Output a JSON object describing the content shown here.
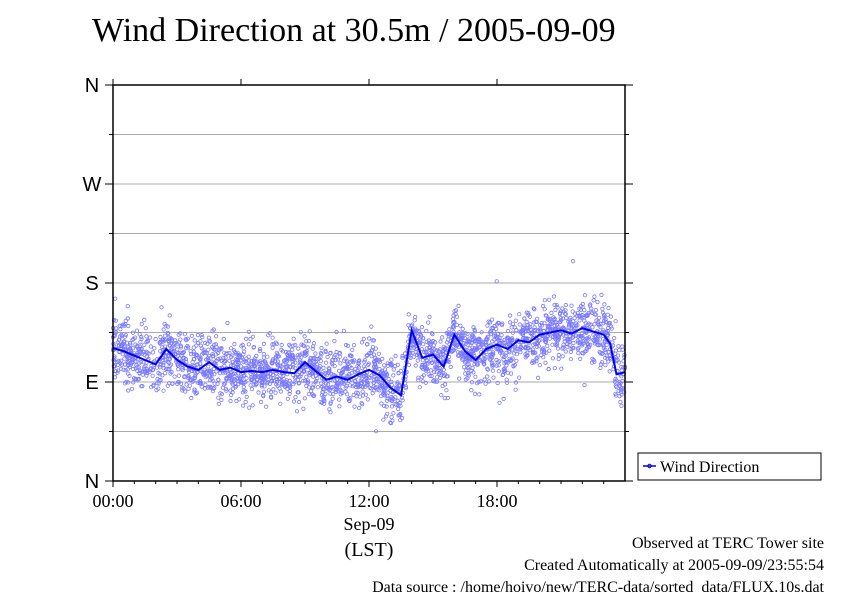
{
  "chart_data": {
    "type": "line",
    "title": "Wind Direction at 30.5m / 2005-09-09",
    "xlabel_date": "Sep-09",
    "xlabel": "(LST)",
    "xlim_hours": [
      0,
      24
    ],
    "ylim_deg": [
      0,
      360
    ],
    "x_ticks": [
      {
        "h": 0,
        "label": "00:00"
      },
      {
        "h": 6,
        "label": "06:00"
      },
      {
        "h": 12,
        "label": "12:00"
      },
      {
        "h": 18,
        "label": "18:00"
      }
    ],
    "y_ticks": [
      {
        "deg": 0,
        "label": "N"
      },
      {
        "deg": 90,
        "label": "E"
      },
      {
        "deg": 180,
        "label": "S"
      },
      {
        "deg": 270,
        "label": "W"
      },
      {
        "deg": 360,
        "label": "N"
      }
    ],
    "minor_y_deg": [
      45,
      135,
      225,
      315
    ],
    "grid": true,
    "legend": {
      "label": "Wind Direction",
      "placement": "right"
    },
    "series": [
      {
        "name": "Wind Direction",
        "color": "#0000ee",
        "scatter_color": "#7777ff",
        "x_hours": [
          0,
          0.5,
          1,
          1.5,
          2,
          2.5,
          3,
          3.5,
          4,
          4.5,
          5,
          5.5,
          6,
          6.5,
          7,
          7.5,
          8,
          8.5,
          9,
          9.5,
          10,
          10.5,
          11,
          11.5,
          12,
          12.5,
          13,
          13.5,
          14,
          14.5,
          15,
          15.5,
          16,
          16.5,
          17,
          17.5,
          18,
          18.5,
          19,
          19.5,
          20,
          20.5,
          21,
          21.5,
          22,
          22.5,
          23,
          23.3,
          23.6,
          24
        ],
        "values_deg": [
          121,
          118,
          114,
          110,
          106,
          120,
          110,
          104,
          101,
          108,
          101,
          103,
          99,
          100,
          99,
          101,
          99,
          98,
          108,
          100,
          92,
          95,
          92,
          97,
          101,
          96,
          85,
          78,
          137,
          112,
          115,
          104,
          133,
          118,
          110,
          120,
          124,
          120,
          128,
          126,
          133,
          135,
          137,
          134,
          139,
          136,
          133,
          125,
          97,
          99
        ],
        "scatter_spread_deg": 22
      }
    ]
  },
  "footer": {
    "observed": "Observed at TERC Tower site",
    "created": "Created Automatically at 2005-09-09/23:55:54",
    "source": "Data source : /home/hoivo/new/TERC-data/sorted  data/FLUX.10s.dat"
  }
}
